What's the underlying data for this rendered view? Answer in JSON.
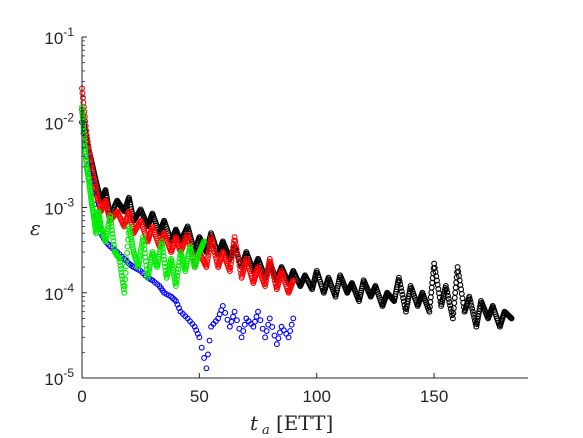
{
  "chart_data": {
    "type": "scatter",
    "y_scale": "log",
    "xlim": [
      0,
      190
    ],
    "ylim": [
      1e-05,
      0.1
    ],
    "x_ticks": [
      "0",
      "50",
      "100",
      "150"
    ],
    "x_tick_values": [
      0,
      50,
      100,
      150
    ],
    "y_ticks": [
      {
        "base": "10",
        "exp": "-1",
        "value": 0.1
      },
      {
        "base": "10",
        "exp": "-2",
        "value": 0.01
      },
      {
        "base": "10",
        "exp": "-3",
        "value": 0.001
      },
      {
        "base": "10",
        "exp": "-4",
        "value": 0.0001
      },
      {
        "base": "10",
        "exp": "-5",
        "value": 1e-05
      }
    ],
    "xlabel": {
      "symbol": "t",
      "subscript": "a",
      "unit": "[ETT]"
    },
    "ylabel": "ε",
    "grid": false,
    "series": [
      {
        "color": "#000000",
        "marker": "open-circle",
        "x": [
          0,
          2,
          4,
          6,
          8,
          10,
          12,
          15,
          18,
          20,
          22,
          25,
          28,
          30,
          33,
          35,
          38,
          40,
          42,
          45,
          48,
          50,
          53,
          55,
          58,
          60,
          63,
          65,
          68,
          70,
          73,
          75,
          78,
          80,
          83,
          85,
          88,
          90,
          93,
          95,
          98,
          100,
          103,
          105,
          108,
          110,
          113,
          115,
          118,
          120,
          123,
          125,
          128,
          130,
          133,
          135,
          138,
          140,
          143,
          145,
          148,
          150,
          153,
          155,
          158,
          160,
          163,
          165,
          168,
          170,
          173,
          175,
          178,
          180,
          183
        ],
        "y": [
          0.014,
          0.006,
          0.0035,
          0.002,
          0.0012,
          0.0016,
          0.0008,
          0.0012,
          0.0009,
          0.0013,
          0.0007,
          0.00095,
          0.0006,
          0.00085,
          0.0005,
          0.0007,
          0.0004,
          0.00055,
          0.0004,
          0.0006,
          0.0003,
          0.00045,
          0.0003,
          0.0005,
          0.00028,
          0.0004,
          0.00025,
          0.00035,
          0.0002,
          0.0003,
          0.00018,
          0.00025,
          0.00015,
          0.00022,
          0.00014,
          0.0002,
          0.00013,
          0.00018,
          0.00012,
          0.00016,
          0.00011,
          0.00018,
          0.0001,
          0.00015,
          9e-05,
          0.00016,
          0.0001,
          0.00013,
          8e-05,
          0.00014,
          9e-05,
          0.00012,
          7e-05,
          0.0001,
          8e-05,
          0.00015,
          6e-05,
          0.00012,
          7e-05,
          0.0001,
          6e-05,
          0.00022,
          7e-05,
          0.00012,
          5e-05,
          0.0002,
          6e-05,
          9e-05,
          4e-05,
          8e-05,
          5e-05,
          7e-05,
          4e-05,
          6e-05,
          5e-05
        ]
      },
      {
        "color": "#ff0000",
        "marker": "open-circle",
        "x": [
          0,
          2,
          4,
          6,
          8,
          10,
          12,
          15,
          18,
          20,
          22,
          25,
          28,
          30,
          33,
          35,
          38,
          40,
          42,
          45,
          48,
          50,
          53,
          55,
          58,
          60,
          63,
          65,
          68,
          70,
          73,
          75,
          78,
          80,
          83,
          85,
          88,
          90
        ],
        "y": [
          0.025,
          0.007,
          0.003,
          0.0015,
          0.0009,
          0.0012,
          0.0007,
          0.0009,
          0.0006,
          0.0009,
          0.0005,
          0.0007,
          0.0004,
          0.0006,
          0.00035,
          0.0005,
          0.0003,
          0.00045,
          0.0003,
          0.00048,
          0.0002,
          0.0003,
          0.0002,
          0.00045,
          0.0002,
          0.0003,
          0.00018,
          0.00045,
          0.00015,
          0.00025,
          0.00013,
          0.0002,
          0.00012,
          0.00025,
          0.00011,
          0.00018,
          0.0001,
          0.00014
        ]
      },
      {
        "color": "#0000ff",
        "marker": "open-circle",
        "x": [
          0,
          2,
          4,
          6,
          8,
          10,
          12,
          15,
          18,
          20,
          22,
          25,
          28,
          30,
          33,
          35,
          38,
          40,
          42,
          45,
          48,
          50,
          53,
          55,
          58,
          60,
          63,
          65,
          68,
          70,
          73,
          75,
          78,
          80,
          83,
          85,
          88,
          90
        ],
        "y": [
          0.01,
          0.004,
          0.002,
          0.0008,
          0.0005,
          0.0004,
          0.00035,
          0.0003,
          0.00025,
          0.00022,
          0.0002,
          0.00018,
          0.00015,
          0.00014,
          0.00012,
          0.0001,
          9e-05,
          8e-05,
          6e-05,
          5e-05,
          4e-05,
          3e-05,
          1.3e-05,
          4e-05,
          5e-05,
          7e-05,
          4e-05,
          6e-05,
          3e-05,
          5e-05,
          4e-05,
          6e-05,
          3e-05,
          5e-05,
          2.5e-05,
          4e-05,
          3e-05,
          5e-05
        ]
      },
      {
        "color": "#00ee00",
        "marker": "open-circle",
        "x": [
          0,
          1,
          2,
          3,
          4,
          5,
          6,
          7,
          8,
          10,
          12,
          14,
          16,
          18,
          20,
          22,
          24,
          26,
          28,
          30,
          32,
          34,
          36,
          38,
          40,
          42,
          44,
          46,
          48,
          50,
          52
        ],
        "y": [
          0.015,
          0.006,
          0.003,
          0.002,
          0.0012,
          0.0008,
          0.0005,
          0.0009,
          0.0006,
          0.0004,
          0.0008,
          0.0003,
          0.00025,
          0.0001,
          0.0006,
          0.0003,
          0.0002,
          0.00045,
          0.00015,
          0.0003,
          0.0002,
          0.0004,
          0.00015,
          0.00025,
          0.00012,
          0.0003,
          0.00018,
          0.00035,
          0.0002,
          0.0003,
          0.0004
        ]
      }
    ]
  }
}
